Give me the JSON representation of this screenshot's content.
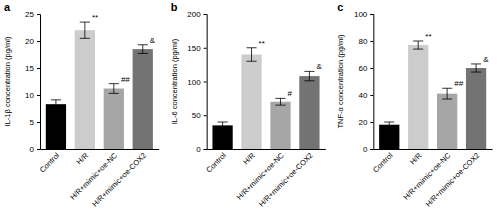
{
  "chart_data": [
    {
      "type": "bar",
      "title": "a",
      "y_label": "IL-1β concentration (pg/ml)",
      "categories": [
        "Control",
        "H/R",
        "H/R+mimic+oe-NC",
        "H/R+mimic+oe-COX2"
      ],
      "values": [
        8.3,
        22.0,
        11.2,
        18.5
      ],
      "errors": [
        0.8,
        1.5,
        0.9,
        0.8
      ],
      "annotations": [
        null,
        "**",
        "##",
        "&"
      ],
      "colors": [
        "#000000",
        "#cccccc",
        "#a6a6a6",
        "#737373"
      ],
      "ylim": [
        0,
        25
      ],
      "yticks": [
        0,
        5,
        10,
        15,
        20,
        25
      ]
    },
    {
      "type": "bar",
      "title": "b",
      "y_label": "IL-6 concentration (pg/ml)",
      "categories": [
        "Control",
        "H/R",
        "H/R+mimic+oe-NC",
        "H/R+mimic+oe-COX2"
      ],
      "values": [
        35,
        140,
        70,
        108
      ],
      "errors": [
        5,
        10,
        5,
        7
      ],
      "annotations": [
        null,
        "**",
        "#",
        "&"
      ],
      "colors": [
        "#000000",
        "#cccccc",
        "#a6a6a6",
        "#737373"
      ],
      "ylim": [
        0,
        200
      ],
      "yticks": [
        0,
        50,
        100,
        150,
        200
      ]
    },
    {
      "type": "bar",
      "title": "c",
      "y_label": "TNF-α concentration (pg/ml)",
      "categories": [
        "Control",
        "H/R",
        "H/R+mimic+oe-NC",
        "H/R+mimic+oe-COX2"
      ],
      "values": [
        18,
        77,
        41,
        60
      ],
      "errors": [
        2,
        3,
        4,
        3
      ],
      "annotations": [
        null,
        "**",
        "##",
        "&"
      ],
      "colors": [
        "#000000",
        "#cccccc",
        "#a6a6a6",
        "#737373"
      ],
      "ylim": [
        0,
        100
      ],
      "yticks": [
        0,
        20,
        40,
        60,
        80,
        100
      ]
    }
  ]
}
